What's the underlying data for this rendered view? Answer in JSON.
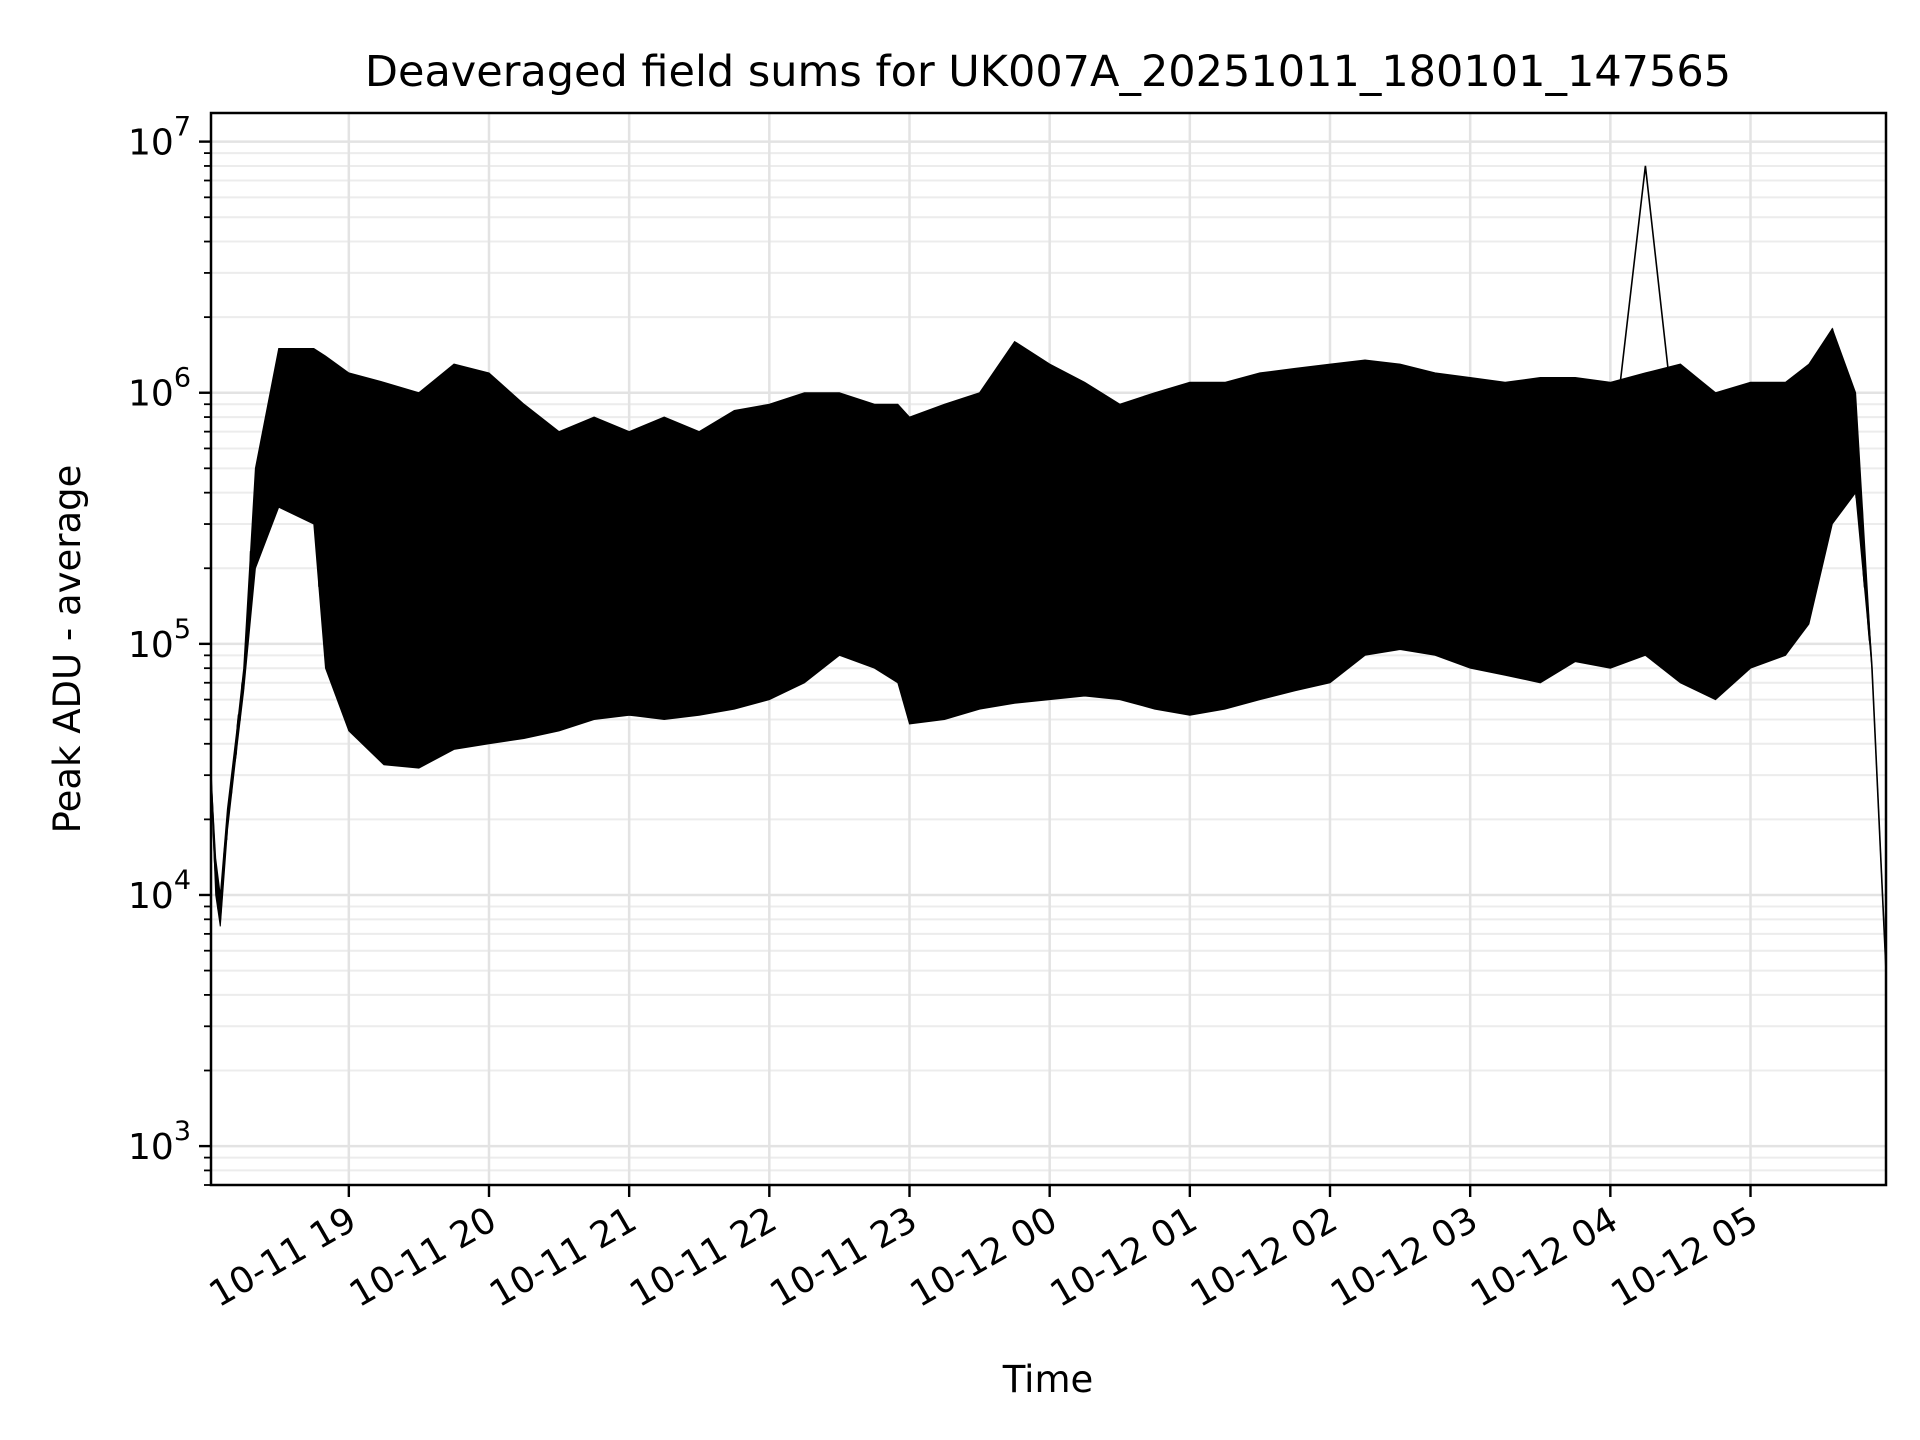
{
  "chart_data": {
    "type": "line",
    "title": "Deaveraged field sums for UK007A_20251011_180101_147565",
    "xlabel": "Time",
    "ylabel": "Peak ADU - average",
    "y_scale": "log",
    "ylim": [
      700,
      13000000
    ],
    "xlim": [
      "2025-10-11T18:01:00",
      "2025-10-12T05:58:00"
    ],
    "grid": true,
    "line_color": "#000000",
    "x_ticks": [
      {
        "value": "2025-10-11T19:00:00",
        "label": "10-11 19"
      },
      {
        "value": "2025-10-11T20:00:00",
        "label": "10-11 20"
      },
      {
        "value": "2025-10-11T21:00:00",
        "label": "10-11 21"
      },
      {
        "value": "2025-10-11T22:00:00",
        "label": "10-11 22"
      },
      {
        "value": "2025-10-11T23:00:00",
        "label": "10-11 23"
      },
      {
        "value": "2025-10-12T00:00:00",
        "label": "10-12 00"
      },
      {
        "value": "2025-10-12T01:00:00",
        "label": "10-12 01"
      },
      {
        "value": "2025-10-12T02:00:00",
        "label": "10-12 02"
      },
      {
        "value": "2025-10-12T03:00:00",
        "label": "10-12 03"
      },
      {
        "value": "2025-10-12T04:00:00",
        "label": "10-12 04"
      },
      {
        "value": "2025-10-12T05:00:00",
        "label": "10-12 05"
      }
    ],
    "y_ticks": [
      {
        "value": 1000,
        "base": "10",
        "exp": "3"
      },
      {
        "value": 10000,
        "base": "10",
        "exp": "4"
      },
      {
        "value": 100000,
        "base": "10",
        "exp": "5"
      },
      {
        "value": 1000000,
        "base": "10",
        "exp": "6"
      },
      {
        "value": 10000000,
        "base": "10",
        "exp": "7"
      }
    ],
    "series": [
      {
        "x": [
          "2025-10-11T18:01:00",
          "2025-10-11T18:03:00",
          "2025-10-11T18:05:00",
          "2025-10-11T18:08:00",
          "2025-10-11T18:12:00",
          "2025-10-11T18:15:00",
          "2025-10-11T18:20:00",
          "2025-10-11T18:30:00",
          "2025-10-11T18:45:00",
          "2025-10-11T18:50:00",
          "2025-10-11T19:00:00",
          "2025-10-11T19:15:00",
          "2025-10-11T19:30:00",
          "2025-10-11T19:45:00",
          "2025-10-11T20:00:00",
          "2025-10-11T20:15:00",
          "2025-10-11T20:30:00",
          "2025-10-11T20:45:00",
          "2025-10-11T21:00:00",
          "2025-10-11T21:15:00",
          "2025-10-11T21:30:00",
          "2025-10-11T21:45:00",
          "2025-10-11T22:00:00",
          "2025-10-11T22:15:00",
          "2025-10-11T22:30:00",
          "2025-10-11T22:45:00",
          "2025-10-11T22:55:00",
          "2025-10-11T23:00:00",
          "2025-10-11T23:15:00",
          "2025-10-11T23:30:00",
          "2025-10-11T23:45:00",
          "2025-10-12T00:00:00",
          "2025-10-12T00:15:00",
          "2025-10-12T00:30:00",
          "2025-10-12T00:45:00",
          "2025-10-12T01:00:00",
          "2025-10-12T01:15:00",
          "2025-10-12T01:30:00",
          "2025-10-12T01:45:00",
          "2025-10-12T02:00:00",
          "2025-10-12T02:15:00",
          "2025-10-12T02:30:00",
          "2025-10-12T02:45:00",
          "2025-10-12T03:00:00",
          "2025-10-12T03:15:00",
          "2025-10-12T03:30:00",
          "2025-10-12T03:45:00",
          "2025-10-12T04:00:00",
          "2025-10-12T04:15:00",
          "2025-10-12T04:30:00",
          "2025-10-12T04:45:00",
          "2025-10-12T05:00:00",
          "2025-10-12T05:15:00",
          "2025-10-12T05:25:00",
          "2025-10-12T05:35:00",
          "2025-10-12T05:45:00",
          "2025-10-12T05:52:00",
          "2025-10-12T05:58:00"
        ],
        "y": [
          30000,
          12000,
          8000,
          20000,
          40000,
          70000,
          300000,
          900000,
          800000,
          500000,
          150000,
          70000,
          60000,
          80000,
          90000,
          100000,
          70000,
          120000,
          100000,
          110000,
          90000,
          130000,
          150000,
          250000,
          400000,
          300000,
          250000,
          130000,
          100000,
          90000,
          80000,
          180000,
          200000,
          250000,
          280000,
          250000,
          300000,
          350000,
          400000,
          450000,
          600000,
          650000,
          500000,
          550000,
          500000,
          550000,
          600000,
          500000,
          8000000,
          450000,
          400000,
          500000,
          400000,
          600000,
          1800000,
          700000,
          80000,
          5000
        ],
        "low": [
          30000,
          10000,
          7500,
          18000,
          38000,
          65000,
          200000,
          350000,
          300000,
          80000,
          45000,
          33000,
          32000,
          38000,
          40000,
          42000,
          45000,
          50000,
          52000,
          50000,
          52000,
          55000,
          60000,
          70000,
          90000,
          80000,
          70000,
          48000,
          50000,
          55000,
          58000,
          60000,
          62000,
          60000,
          55000,
          52000,
          55000,
          60000,
          65000,
          70000,
          90000,
          95000,
          90000,
          80000,
          75000,
          70000,
          85000,
          80000,
          90000,
          70000,
          60000,
          80000,
          90000,
          120000,
          300000,
          400000,
          80000,
          5000
        ],
        "high": [
          30000,
          14000,
          10000,
          22000,
          45000,
          80000,
          500000,
          1500000,
          1500000,
          1400000,
          1200000,
          1100000,
          1000000,
          1300000,
          1200000,
          900000,
          700000,
          800000,
          700000,
          800000,
          700000,
          850000,
          900000,
          1000000,
          1000000,
          900000,
          900000,
          800000,
          900000,
          1000000,
          1600000,
          1300000,
          1100000,
          900000,
          1000000,
          1100000,
          1100000,
          1200000,
          1250000,
          1300000,
          1350000,
          1300000,
          1200000,
          1150000,
          1100000,
          1150000,
          1150000,
          1100000,
          1200000,
          1300000,
          1000000,
          1100000,
          1100000,
          1300000,
          1800000,
          1000000,
          80000,
          5000
        ]
      }
    ]
  }
}
